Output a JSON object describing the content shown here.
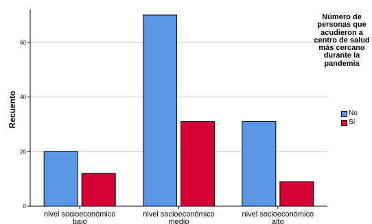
{
  "chart_data": {
    "type": "bar",
    "title": "",
    "xlabel": "",
    "ylabel": "Recuento",
    "ylim": [
      0,
      72
    ],
    "yticks": [
      0,
      20,
      40,
      60
    ],
    "grid": true,
    "legend_position": "right",
    "categories": [
      "nivel socioeconómico bajo",
      "nivel socioeconómico medio",
      "nivel socioeconómico alto"
    ],
    "category_lines": [
      [
        "nivel socioeconómico",
        "bajo"
      ],
      [
        "nivel socioeconómico",
        "medio"
      ],
      [
        "nivel socioeconómico",
        "alto"
      ]
    ],
    "legend_title": "Número de personas que acudieron a centro de salud más cercano durante la pandemia",
    "series": [
      {
        "name": "No",
        "values": [
          20,
          70,
          31
        ],
        "color": "#5b96e4"
      },
      {
        "name": "Sí",
        "values": [
          12,
          31,
          9
        ],
        "color": "#d60032"
      }
    ]
  }
}
